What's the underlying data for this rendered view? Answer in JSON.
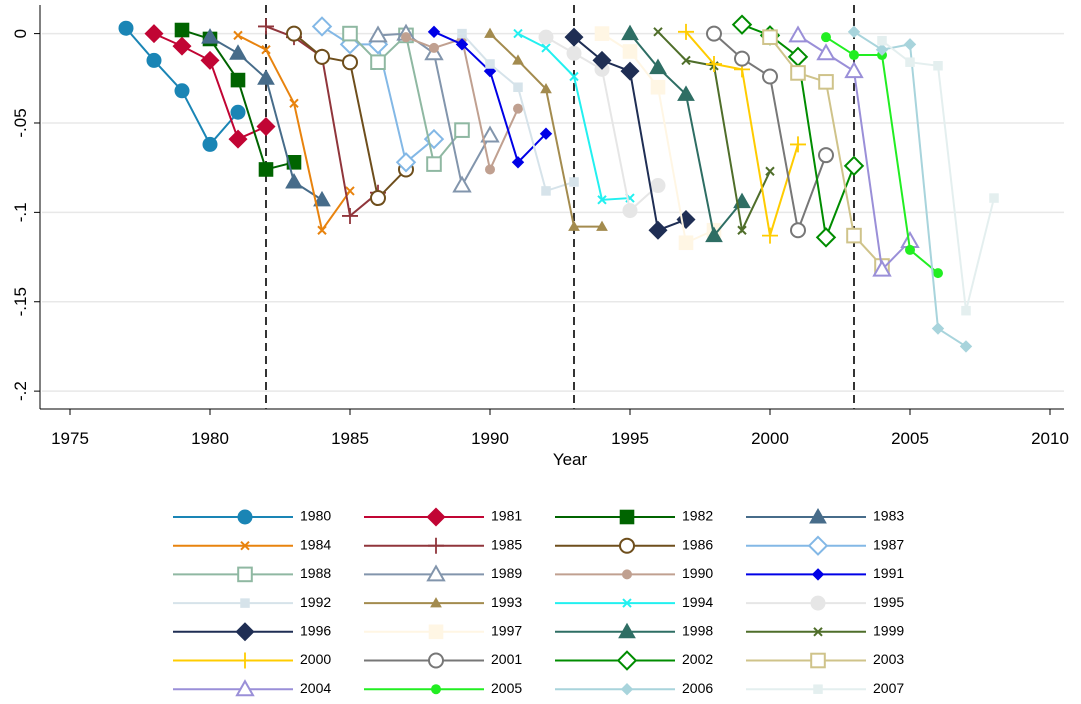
{
  "chart_data": {
    "type": "line",
    "x_label": "Year",
    "xlim": [
      1974,
      2010.5
    ],
    "xticks": [
      1975,
      1980,
      1985,
      1990,
      1995,
      2000,
      2005,
      2010
    ],
    "ylim": [
      -0.21,
      0.016
    ],
    "yticks": [
      0,
      {
        "value": -0.05,
        "label": "-.05"
      },
      {
        "value": -0.1,
        "label": "-.1"
      },
      {
        "value": -0.15,
        "label": "-.15"
      },
      {
        "value": -0.2,
        "label": "-.2"
      }
    ],
    "grid": true,
    "reference_lines_x": [
      1982,
      1993,
      2003
    ],
    "series": [
      {
        "name": "1980",
        "color": "#1a85b5",
        "marker": "circle",
        "x": [
          1977,
          1978,
          1979,
          1980,
          1981
        ],
        "values": [
          0.003,
          -0.015,
          -0.032,
          -0.062,
          -0.044
        ]
      },
      {
        "name": "1981",
        "color": "#c10534",
        "marker": "diamond",
        "x": [
          1978,
          1979,
          1980,
          1981,
          1982
        ],
        "values": [
          0,
          -0.007,
          -0.015,
          -0.059,
          -0.052
        ]
      },
      {
        "name": "1982",
        "color": "#006400",
        "marker": "square",
        "x": [
          1979,
          1980,
          1981,
          1982,
          1983
        ],
        "values": [
          0.002,
          -0.003,
          -0.026,
          -0.076,
          -0.072
        ]
      },
      {
        "name": "1983",
        "color": "#476c8a",
        "marker": "triangle",
        "x": [
          1980,
          1981,
          1982,
          1983,
          1984
        ],
        "values": [
          -0.002,
          -0.011,
          -0.025,
          -0.083,
          -0.093
        ]
      },
      {
        "name": "1984",
        "color": "#e8830e",
        "marker": "x",
        "x": [
          1981,
          1982,
          1983,
          1984,
          1985
        ],
        "values": [
          -0.001,
          -0.009,
          -0.039,
          -0.11,
          -0.088
        ]
      },
      {
        "name": "1985",
        "color": "#90353b",
        "marker": "plus",
        "x": [
          1982,
          1983,
          1984,
          1985,
          1986
        ],
        "values": [
          0.004,
          -0.002,
          -0.013,
          -0.102,
          -0.089
        ]
      },
      {
        "name": "1986",
        "color": "#6e4e1c",
        "marker": "circle-hollow",
        "x": [
          1983,
          1984,
          1985,
          1986,
          1987
        ],
        "values": [
          0,
          -0.013,
          -0.016,
          -0.092,
          -0.076
        ]
      },
      {
        "name": "1987",
        "color": "#83b8e6",
        "marker": "diamond-hollow",
        "x": [
          1984,
          1985,
          1986,
          1987,
          1988
        ],
        "values": [
          0.004,
          -0.006,
          -0.006,
          -0.072,
          -0.059
        ]
      },
      {
        "name": "1988",
        "color": "#8fb8a2",
        "marker": "square-hollow",
        "x": [
          1985,
          1986,
          1987,
          1988,
          1989
        ],
        "values": [
          0,
          -0.016,
          -0.001,
          -0.073,
          -0.054
        ]
      },
      {
        "name": "1989",
        "color": "#8295ac",
        "marker": "triangle-hollow",
        "x": [
          1986,
          1987,
          1988,
          1989,
          1990
        ],
        "values": [
          -0.001,
          0,
          -0.011,
          -0.085,
          -0.057
        ]
      },
      {
        "name": "1990",
        "color": "#c0a090",
        "marker": "small-circle",
        "x": [
          1987,
          1988,
          1989,
          1990,
          1991
        ],
        "values": [
          -0.002,
          -0.008,
          -0.003,
          -0.076,
          -0.042
        ]
      },
      {
        "name": "1991",
        "color": "#0000e6",
        "marker": "small-diamond",
        "x": [
          1988,
          1989,
          1990,
          1991,
          1992
        ],
        "values": [
          0.001,
          -0.006,
          -0.021,
          -0.072,
          -0.056
        ]
      },
      {
        "name": "1992",
        "color": "#d6e3ea",
        "marker": "small-square",
        "x": [
          1989,
          1990,
          1991,
          1992,
          1993
        ],
        "values": [
          0,
          -0.017,
          -0.03,
          -0.088,
          -0.083
        ]
      },
      {
        "name": "1993",
        "color": "#a38b4e",
        "marker": "small-triangle",
        "x": [
          1990,
          1991,
          1992,
          1993,
          1994
        ],
        "values": [
          0,
          -0.015,
          -0.031,
          -0.108,
          -0.108
        ]
      },
      {
        "name": "1994",
        "color": "#22f0f0",
        "marker": "x",
        "x": [
          1991,
          1992,
          1993,
          1994,
          1995
        ],
        "values": [
          0,
          -0.008,
          -0.024,
          -0.093,
          -0.092
        ]
      },
      {
        "name": "1995",
        "color": "#e6e6e6",
        "marker": "circle",
        "x": [
          1992,
          1993,
          1994,
          1995,
          1996
        ],
        "values": [
          -0.002,
          -0.011,
          -0.02,
          -0.099,
          -0.085
        ]
      },
      {
        "name": "1996",
        "color": "#1f2e54",
        "marker": "diamond",
        "x": [
          1993,
          1994,
          1995,
          1996,
          1997
        ],
        "values": [
          -0.002,
          -0.015,
          -0.021,
          -0.11,
          -0.104
        ]
      },
      {
        "name": "1997",
        "color": "#fff6e4",
        "marker": "square",
        "x": [
          1994,
          1995,
          1996,
          1997,
          1998
        ],
        "values": [
          0,
          -0.01,
          -0.03,
          -0.117,
          -0.11
        ]
      },
      {
        "name": "1998",
        "color": "#2e6e64",
        "marker": "triangle",
        "x": [
          1995,
          1996,
          1997,
          1998,
          1999
        ],
        "values": [
          0,
          -0.019,
          -0.034,
          -0.113,
          -0.094
        ]
      },
      {
        "name": "1999",
        "color": "#4f6e2a",
        "marker": "x",
        "x": [
          1996,
          1997,
          1998,
          1999,
          2000
        ],
        "values": [
          0.001,
          -0.015,
          -0.018,
          -0.11,
          -0.077
        ]
      },
      {
        "name": "2000",
        "color": "#ffcc00",
        "marker": "plus",
        "x": [
          1997,
          1998,
          1999,
          2000,
          2001
        ],
        "values": [
          0.001,
          -0.017,
          -0.02,
          -0.113,
          -0.062
        ]
      },
      {
        "name": "2001",
        "color": "#777777",
        "marker": "circle-hollow",
        "x": [
          1998,
          1999,
          2000,
          2001,
          2002
        ],
        "values": [
          0,
          -0.014,
          -0.024,
          -0.11,
          -0.068
        ]
      },
      {
        "name": "2002",
        "color": "#008c00",
        "marker": "diamond-hollow",
        "x": [
          1999,
          2000,
          2001,
          2002,
          2003
        ],
        "values": [
          0.005,
          -0.001,
          -0.013,
          -0.114,
          -0.074
        ]
      },
      {
        "name": "2003",
        "color": "#cfc38a",
        "marker": "square-hollow",
        "x": [
          2000,
          2001,
          2002,
          2003,
          2004
        ],
        "values": [
          -0.002,
          -0.022,
          -0.027,
          -0.113,
          -0.13
        ]
      },
      {
        "name": "2004",
        "color": "#9a8fd8",
        "marker": "triangle-hollow",
        "x": [
          2001,
          2002,
          2003,
          2004,
          2005
        ],
        "values": [
          -0.001,
          -0.011,
          -0.021,
          -0.132,
          -0.116
        ]
      },
      {
        "name": "2005",
        "color": "#22ee22",
        "marker": "small-circle",
        "x": [
          2002,
          2003,
          2004,
          2005,
          2006
        ],
        "values": [
          -0.002,
          -0.012,
          -0.012,
          -0.121,
          -0.134
        ]
      },
      {
        "name": "2006",
        "color": "#a8d4dc",
        "marker": "small-diamond",
        "x": [
          2003,
          2004,
          2005,
          2006,
          2007
        ],
        "values": [
          0.001,
          -0.009,
          -0.006,
          -0.165,
          -0.175
        ]
      },
      {
        "name": "2007",
        "color": "#e4efef",
        "marker": "small-square",
        "x": [
          2004,
          2005,
          2006,
          2007,
          2008
        ],
        "values": [
          -0.004,
          -0.016,
          -0.018,
          -0.155,
          -0.092
        ]
      }
    ]
  }
}
